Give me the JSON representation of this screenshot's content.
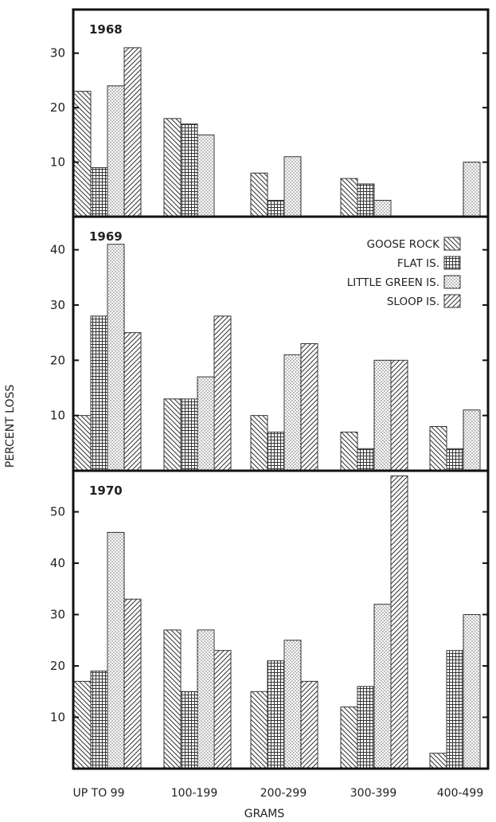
{
  "chart_data": {
    "type": "bar",
    "ylabel": "PERCENT LOSS",
    "xlabel": "GRAMS",
    "categories": [
      "UP TO 99",
      "100-199",
      "200-299",
      "300-399",
      "400-499"
    ],
    "legend": {
      "placement": "top-right of 1969 panel",
      "entries": [
        "GOOSE ROCK",
        "FLAT IS.",
        "LITTLE GREEN IS.",
        "SLOOP IS."
      ]
    },
    "panels": [
      {
        "title": "1968",
        "ylim": [
          0,
          38
        ],
        "yticks": [
          10,
          20,
          30
        ],
        "series": [
          {
            "name": "GOOSE ROCK",
            "values": [
              23,
              18,
              8,
              7,
              null
            ]
          },
          {
            "name": "FLAT IS.",
            "values": [
              9,
              17,
              3,
              6,
              null
            ]
          },
          {
            "name": "LITTLE GREEN IS.",
            "values": [
              24,
              15,
              11,
              3,
              10
            ]
          },
          {
            "name": "SLOOP IS.",
            "values": [
              31,
              null,
              null,
              null,
              null
            ]
          }
        ]
      },
      {
        "title": "1969",
        "ylim": [
          0,
          46
        ],
        "yticks": [
          10,
          20,
          30,
          40
        ],
        "series": [
          {
            "name": "GOOSE ROCK",
            "values": [
              10,
              13,
              10,
              7,
              8
            ]
          },
          {
            "name": "FLAT IS.",
            "values": [
              28,
              13,
              7,
              4,
              4
            ]
          },
          {
            "name": "LITTLE GREEN IS.",
            "values": [
              41,
              17,
              21,
              20,
              11
            ]
          },
          {
            "name": "SLOOP IS.",
            "values": [
              25,
              28,
              23,
              20,
              null
            ]
          }
        ]
      },
      {
        "title": "1970",
        "ylim": [
          0,
          58
        ],
        "yticks": [
          10,
          20,
          30,
          40,
          50
        ],
        "series": [
          {
            "name": "GOOSE ROCK",
            "values": [
              17,
              27,
              15,
              12,
              3
            ]
          },
          {
            "name": "FLAT IS.",
            "values": [
              19,
              15,
              21,
              16,
              23
            ]
          },
          {
            "name": "LITTLE GREEN IS.",
            "values": [
              46,
              27,
              25,
              32,
              30
            ]
          },
          {
            "name": "SLOOP IS.",
            "values": [
              33,
              23,
              17,
              57,
              null
            ]
          }
        ]
      }
    ]
  }
}
